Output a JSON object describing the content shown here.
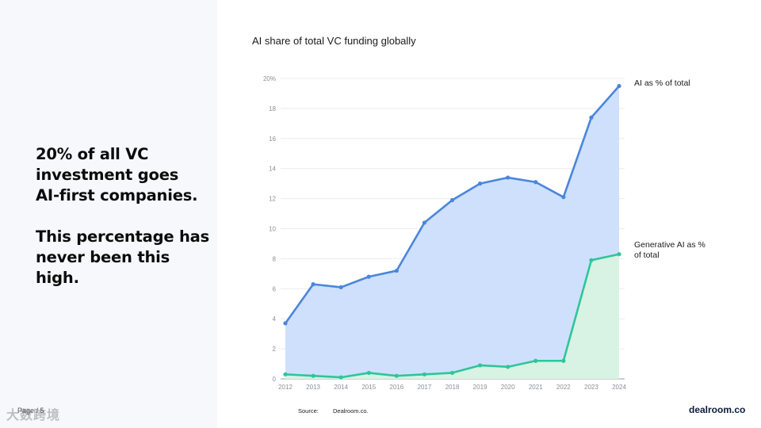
{
  "headline": {
    "line1": "20% of all VC\ninvestment goes\nAI-first companies.",
    "line2": "This percentage has\nnever been this high."
  },
  "page_label": "Page / 5",
  "watermark": "大数跨境",
  "brand": "dealroom.co",
  "source": {
    "label": "Source:",
    "value": "Dealroom.co."
  },
  "colors": {
    "ai_line": "#4a86dc",
    "ai_fill": "#cfe0fd",
    "genai_line": "#2ec59a",
    "genai_fill": "#d8f3e2",
    "grid": "#e9ecf0"
  },
  "chart_data": {
    "type": "area",
    "title": "AI share of total VC funding globally",
    "x": [
      "2012",
      "2013",
      "2014",
      "2015",
      "2016",
      "2017",
      "2018",
      "2019",
      "2020",
      "2021",
      "2022",
      "2023",
      "2024"
    ],
    "yticks": [
      "0",
      "2",
      "4",
      "6",
      "8",
      "10",
      "12",
      "14",
      "16",
      "18",
      "20%"
    ],
    "ylim": [
      0,
      20
    ],
    "grid": true,
    "series": [
      {
        "name": "AI as % of total",
        "values": [
          3.7,
          6.3,
          6.1,
          6.8,
          7.2,
          10.4,
          11.9,
          13.0,
          13.4,
          13.1,
          12.1,
          17.4,
          19.5
        ]
      },
      {
        "name": "Generative AI as % of total",
        "values": [
          0.3,
          0.2,
          0.1,
          0.4,
          0.2,
          0.3,
          0.4,
          0.9,
          0.8,
          1.2,
          1.2,
          7.9,
          8.3
        ]
      }
    ]
  }
}
